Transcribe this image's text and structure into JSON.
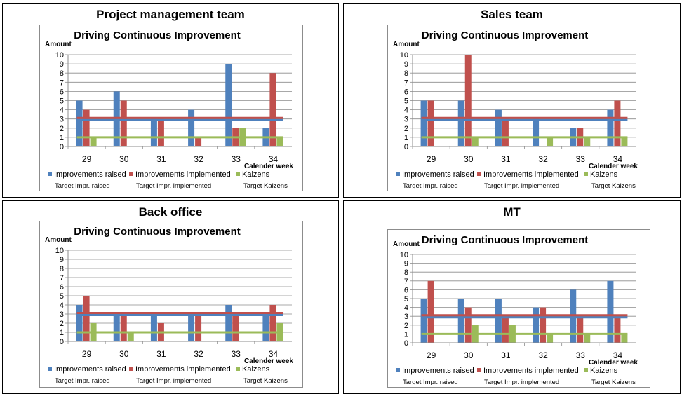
{
  "colors": {
    "raised": "#4F81BD",
    "implemented": "#C0504D",
    "kaizens": "#9BBB59",
    "target_raised": "#4F81BD",
    "target_implemented": "#C0504D",
    "target_kaizens": "#9BBB59"
  },
  "chart_data": [
    {
      "panel_title": "Project management team",
      "type": "bar",
      "title": "Driving Continuous Improvement",
      "ylabel": "Amount",
      "xlabel": "Calender week",
      "ylim": [
        0,
        10
      ],
      "yticks": [
        "0",
        "1",
        "2",
        "3",
        "4",
        "5",
        "6",
        "7",
        "8",
        "9",
        "10"
      ],
      "categories": [
        "29",
        "30",
        "31",
        "32",
        "33",
        "34"
      ],
      "series": [
        {
          "name": "Improvements raised",
          "values": [
            5,
            6,
            3,
            4,
            9,
            2
          ]
        },
        {
          "name": "Improvements implemented",
          "values": [
            4,
            5,
            3,
            1,
            2,
            8
          ]
        },
        {
          "name": "Kaizens",
          "values": [
            1,
            0,
            0,
            0,
            2,
            1
          ]
        }
      ],
      "targets": [
        {
          "name": "Target Impr. raised",
          "value": 3
        },
        {
          "name": "Target Impr. implemented",
          "value": 3
        },
        {
          "name": "Target Kaizens",
          "value": 1
        }
      ]
    },
    {
      "panel_title": "Sales team",
      "type": "bar",
      "title": "Driving Continuous Improvement",
      "ylabel": "Amount",
      "xlabel": "Calender week",
      "ylim": [
        0,
        10
      ],
      "yticks": [
        "0",
        "1",
        "2",
        "3",
        "4",
        "5",
        "6",
        "7",
        "8",
        "9",
        "10"
      ],
      "categories": [
        "29",
        "30",
        "31",
        "32",
        "33",
        "34"
      ],
      "series": [
        {
          "name": "Improvements raised",
          "values": [
            5,
            5,
            4,
            3,
            2,
            4
          ]
        },
        {
          "name": "Improvements implemented",
          "values": [
            5,
            10,
            3,
            0,
            2,
            5
          ]
        },
        {
          "name": "Kaizens",
          "values": [
            0,
            1,
            0,
            1,
            1,
            1
          ]
        }
      ],
      "targets": [
        {
          "name": "Target Impr. raised",
          "value": 3
        },
        {
          "name": "Target Impr. implemented",
          "value": 3
        },
        {
          "name": "Target Kaizens",
          "value": 1
        }
      ]
    },
    {
      "panel_title": "Back office",
      "type": "bar",
      "title": "Driving Continuous Improvement",
      "ylabel": "Amount",
      "xlabel": "Calender week",
      "ylim": [
        0,
        10
      ],
      "yticks": [
        "0",
        "1",
        "2",
        "3",
        "4",
        "5",
        "6",
        "7",
        "8",
        "9",
        "10"
      ],
      "categories": [
        "29",
        "30",
        "31",
        "32",
        "33",
        "34"
      ],
      "series": [
        {
          "name": "Improvements raised",
          "values": [
            4,
            3,
            3,
            3,
            4,
            3
          ]
        },
        {
          "name": "Improvements implemented",
          "values": [
            5,
            3,
            2,
            3,
            3,
            4
          ]
        },
        {
          "name": "Kaizens",
          "values": [
            2,
            1,
            0,
            0,
            0,
            2
          ]
        }
      ],
      "targets": [
        {
          "name": "Target Impr. raised",
          "value": 3
        },
        {
          "name": "Target Impr. implemented",
          "value": 3
        },
        {
          "name": "Target Kaizens",
          "value": 1
        }
      ]
    },
    {
      "panel_title": "MT",
      "type": "bar",
      "title": "Driving Continuous Improvement",
      "ylabel": "Amount",
      "xlabel": "Calender week",
      "ylim": [
        0,
        10
      ],
      "yticks": [
        "0",
        "1",
        "2",
        "3",
        "4",
        "5",
        "6",
        "7",
        "8",
        "9",
        "10"
      ],
      "categories": [
        "29",
        "30",
        "31",
        "32",
        "33",
        "34"
      ],
      "series": [
        {
          "name": "Improvements raised",
          "values": [
            5,
            5,
            5,
            4,
            6,
            7
          ]
        },
        {
          "name": "Improvements implemented",
          "values": [
            7,
            4,
            3,
            4,
            3,
            3
          ]
        },
        {
          "name": "Kaizens",
          "values": [
            0,
            2,
            2,
            1,
            1,
            1
          ]
        }
      ],
      "targets": [
        {
          "name": "Target Impr. raised",
          "value": 3
        },
        {
          "name": "Target Impr. implemented",
          "value": 3
        },
        {
          "name": "Target Kaizens",
          "value": 1
        }
      ]
    }
  ]
}
